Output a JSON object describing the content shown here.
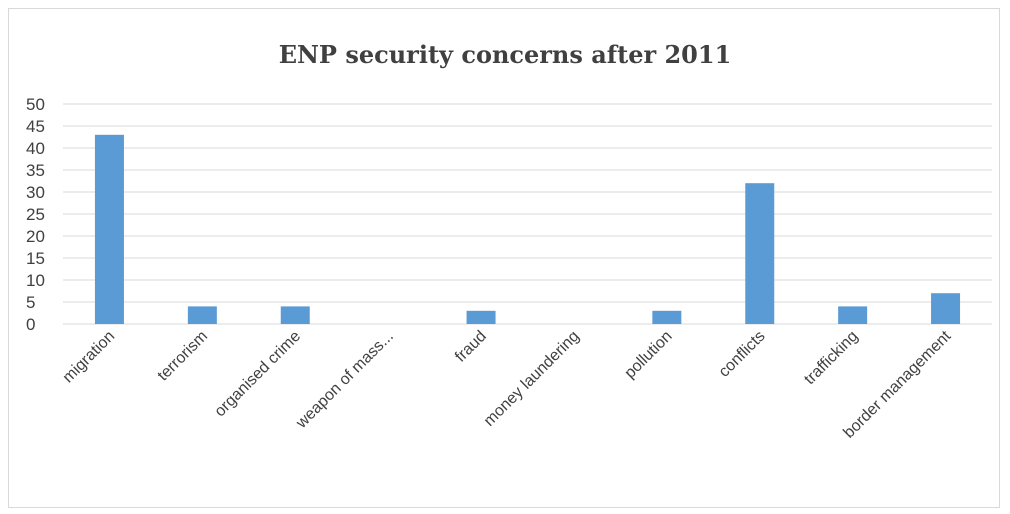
{
  "chart_data": {
    "type": "bar",
    "title": "ENP security concerns after 2011",
    "categories": [
      "migration",
      "terrorism",
      "organised crime",
      "weapon of mass...",
      "fraud",
      "money laundering",
      "pollution",
      "conflicts",
      "trafficking",
      "border management"
    ],
    "values": [
      43,
      4,
      4,
      0,
      3,
      0,
      3,
      32,
      4,
      7
    ],
    "yticks": [
      0,
      5,
      10,
      15,
      20,
      25,
      30,
      35,
      40,
      45,
      50
    ],
    "ylim": [
      0,
      50
    ],
    "grid": true,
    "bar_color": "#5b9bd5",
    "grid_color": "#d9d9d9"
  }
}
